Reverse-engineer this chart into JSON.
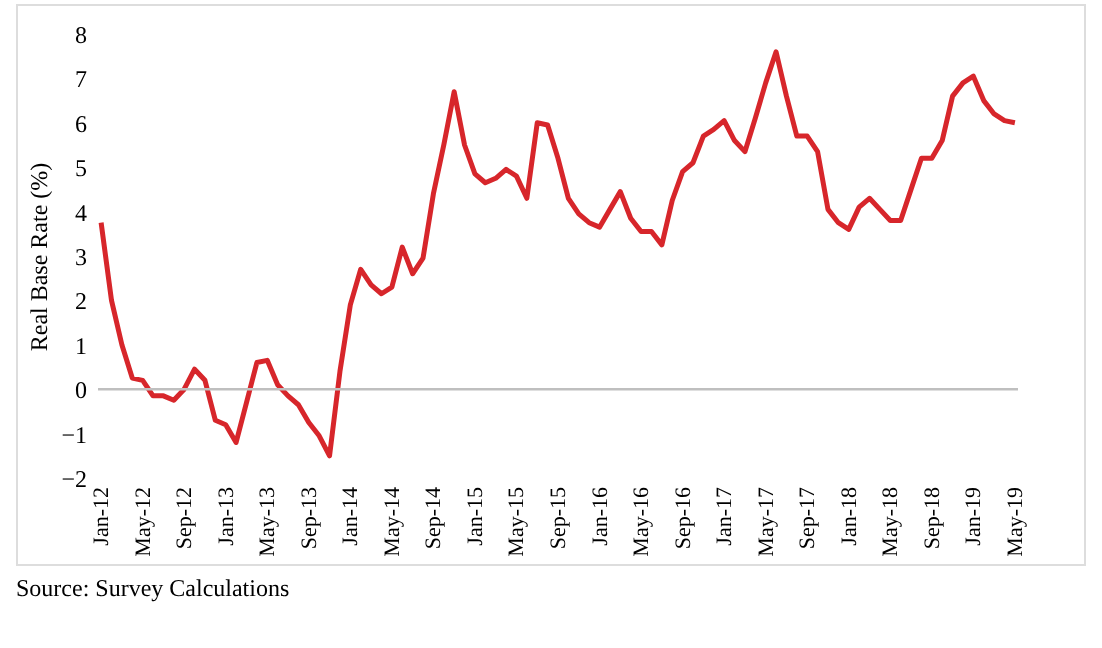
{
  "chart_data": {
    "type": "line",
    "ylabel": "Real Base Rate (%)",
    "categories": [
      "Jan-12",
      null,
      null,
      null,
      "May-12",
      null,
      null,
      null,
      "Sep-12",
      null,
      null,
      null,
      "Jan-13",
      null,
      null,
      null,
      "May-13",
      null,
      null,
      null,
      "Sep-13",
      null,
      null,
      null,
      "Jan-14",
      null,
      null,
      null,
      "May-14",
      null,
      null,
      null,
      "Sep-14",
      null,
      null,
      null,
      "Jan-15",
      null,
      null,
      null,
      "May-15",
      null,
      null,
      null,
      "Sep-15",
      null,
      null,
      null,
      "Jan-16",
      null,
      null,
      null,
      "May-16",
      null,
      null,
      null,
      "Sep-16",
      null,
      null,
      null,
      "Jan-17",
      null,
      null,
      null,
      "May-17",
      null,
      null,
      null,
      "Sep-17",
      null,
      null,
      null,
      "Jan-18",
      null,
      null,
      null,
      "May-18",
      null,
      null,
      null,
      "Sep-18",
      null,
      null,
      null,
      "Jan-19",
      null,
      null,
      null,
      "May-19"
    ],
    "series": [
      {
        "color": "#d7262b",
        "values": [
          3.75,
          2.0,
          1.0,
          0.25,
          0.2,
          -0.15,
          -0.15,
          -0.25,
          0.0,
          0.45,
          0.2,
          -0.7,
          -0.8,
          -1.2,
          -0.3,
          0.6,
          0.65,
          0.1,
          -0.15,
          -0.35,
          -0.75,
          -1.05,
          -1.5,
          0.4,
          1.9,
          2.7,
          2.35,
          2.15,
          2.3,
          3.2,
          2.6,
          2.95,
          4.4,
          5.5,
          6.7,
          5.5,
          4.85,
          4.65,
          4.75,
          4.95,
          4.8,
          4.3,
          6.0,
          5.95,
          5.2,
          4.3,
          3.95,
          3.75,
          3.65,
          4.05,
          4.45,
          3.85,
          3.55,
          3.55,
          3.25,
          4.25,
          4.9,
          5.1,
          5.7,
          5.85,
          6.05,
          5.6,
          5.35,
          6.1,
          6.9,
          7.6,
          6.6,
          5.7,
          5.7,
          5.35,
          4.05,
          3.75,
          3.6,
          4.1,
          4.3,
          4.05,
          3.8,
          3.8,
          4.5,
          5.2,
          5.2,
          5.6,
          6.6,
          6.9,
          7.05,
          6.5,
          6.2,
          6.05,
          6.0
        ]
      }
    ],
    "ylim": [
      -2,
      8
    ],
    "yticks": [
      -2,
      -1,
      0,
      1,
      2,
      3,
      4,
      5,
      6,
      7,
      8
    ],
    "grid": false,
    "marker": "none",
    "line_style": "solid",
    "ref_lines": [
      {
        "axis": "y",
        "value": 0,
        "color": "#bfbfbf"
      }
    ],
    "annotations": [
      "Source: Survey Calculations"
    ]
  }
}
